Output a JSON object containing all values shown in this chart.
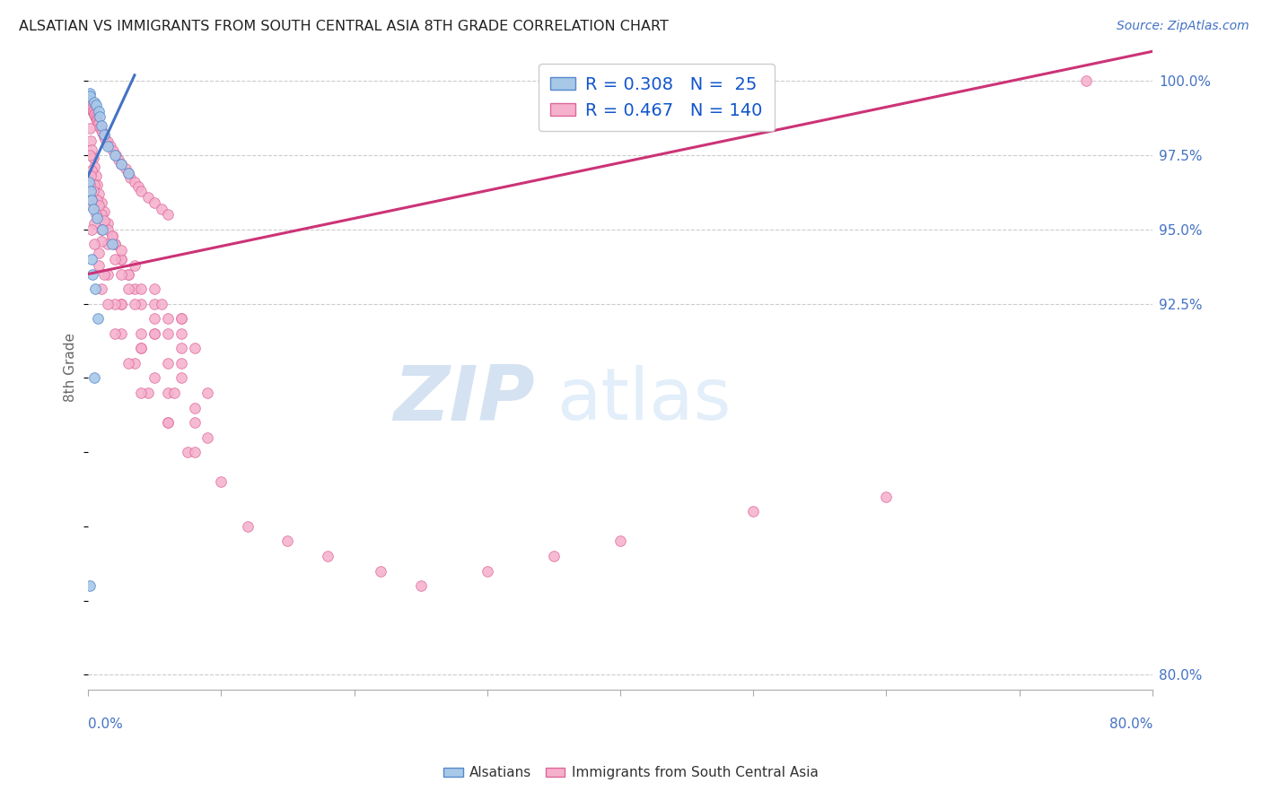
{
  "title": "ALSATIAN VS IMMIGRANTS FROM SOUTH CENTRAL ASIA 8TH GRADE CORRELATION CHART",
  "source": "Source: ZipAtlas.com",
  "ylabel": "8th Grade",
  "xlim": [
    0.0,
    80.0
  ],
  "ylim": [
    79.5,
    101.2
  ],
  "right_yticks": [
    80.0,
    92.5,
    95.0,
    97.5,
    100.0
  ],
  "blue_r": "0.308",
  "blue_n": "25",
  "pink_r": "0.467",
  "pink_n": "140",
  "blue_color": "#a8c8e8",
  "pink_color": "#f5b0cc",
  "blue_edge_color": "#5588cc",
  "pink_edge_color": "#dd6699",
  "blue_line_color": "#4472c4",
  "pink_line_color": "#cc3377",
  "grid_color": "#cccccc",
  "title_color": "#222222",
  "source_color": "#4472c4",
  "axis_label_color": "#666666",
  "right_tick_color": "#4472c4",
  "bottom_label_color": "#4472c4",
  "blue_scatter_x": [
    0.1,
    0.15,
    0.5,
    0.6,
    0.8,
    0.9,
    1.0,
    1.2,
    1.5,
    2.0,
    2.5,
    3.0,
    0.05,
    0.2,
    0.3,
    0.4,
    0.7,
    1.1,
    1.8,
    0.25,
    0.35,
    0.55,
    0.75,
    0.45,
    0.15
  ],
  "blue_scatter_y": [
    99.6,
    99.5,
    99.3,
    99.2,
    99.0,
    98.8,
    98.5,
    98.2,
    97.8,
    97.5,
    97.2,
    96.9,
    96.6,
    96.3,
    96.0,
    95.7,
    95.4,
    95.0,
    94.5,
    94.0,
    93.5,
    93.0,
    92.0,
    90.0,
    83.0
  ],
  "pink_scatter_x": [
    0.05,
    0.08,
    0.1,
    0.12,
    0.15,
    0.18,
    0.2,
    0.25,
    0.3,
    0.35,
    0.4,
    0.45,
    0.5,
    0.55,
    0.6,
    0.65,
    0.7,
    0.75,
    0.8,
    0.9,
    1.0,
    1.1,
    1.2,
    1.3,
    1.5,
    1.7,
    1.9,
    2.1,
    2.3,
    2.5,
    2.8,
    3.0,
    3.2,
    3.5,
    3.8,
    4.0,
    4.5,
    5.0,
    5.5,
    6.0,
    0.1,
    0.2,
    0.3,
    0.4,
    0.5,
    0.6,
    0.7,
    0.8,
    1.0,
    1.2,
    1.5,
    1.8,
    2.0,
    2.5,
    3.0,
    3.5,
    4.0,
    5.0,
    6.0,
    7.0,
    0.15,
    0.3,
    0.5,
    0.7,
    1.0,
    1.5,
    2.0,
    2.5,
    3.0,
    4.0,
    5.0,
    6.0,
    7.0,
    8.0,
    0.2,
    0.4,
    0.8,
    1.2,
    1.8,
    2.5,
    3.5,
    5.0,
    7.0,
    0.1,
    0.3,
    0.6,
    1.0,
    1.5,
    2.5,
    3.5,
    5.0,
    7.0,
    9.0,
    0.2,
    0.5,
    1.0,
    2.0,
    3.0,
    5.0,
    7.0,
    0.3,
    0.8,
    1.5,
    2.5,
    4.0,
    6.0,
    8.0,
    0.5,
    1.2,
    2.5,
    4.0,
    6.0,
    0.8,
    2.0,
    4.0,
    6.5,
    1.0,
    2.5,
    5.0,
    8.0,
    1.5,
    3.5,
    6.0,
    2.0,
    4.5,
    7.5,
    3.0,
    6.0,
    10.0,
    4.0,
    8.0,
    5.5,
    9.0,
    7.0,
    12.0,
    15.0,
    18.0,
    22.0,
    25.0,
    30.0,
    35.0,
    40.0,
    50.0,
    60.0,
    75.0
  ],
  "pink_scatter_y": [
    99.5,
    99.4,
    99.35,
    99.3,
    99.25,
    99.2,
    99.15,
    99.1,
    99.05,
    99.0,
    98.95,
    98.9,
    98.85,
    98.8,
    98.75,
    98.7,
    98.65,
    98.6,
    98.55,
    98.45,
    98.35,
    98.25,
    98.15,
    98.05,
    97.95,
    97.8,
    97.65,
    97.5,
    97.35,
    97.2,
    97.05,
    96.9,
    96.75,
    96.6,
    96.45,
    96.3,
    96.1,
    95.9,
    95.7,
    95.5,
    98.4,
    98.0,
    97.7,
    97.4,
    97.1,
    96.8,
    96.5,
    96.2,
    95.9,
    95.6,
    95.2,
    94.8,
    94.5,
    94.0,
    93.5,
    93.0,
    92.5,
    92.0,
    91.5,
    91.0,
    97.5,
    97.0,
    96.5,
    96.0,
    95.5,
    95.0,
    94.5,
    94.0,
    93.5,
    93.0,
    92.5,
    92.0,
    91.5,
    91.0,
    96.8,
    96.3,
    95.8,
    95.3,
    94.8,
    94.3,
    93.8,
    93.0,
    92.0,
    96.5,
    96.0,
    95.5,
    95.0,
    94.5,
    93.5,
    92.5,
    91.5,
    90.5,
    89.5,
    95.8,
    95.2,
    94.6,
    94.0,
    93.0,
    91.5,
    90.0,
    95.0,
    94.2,
    93.5,
    92.5,
    91.5,
    90.5,
    89.0,
    94.5,
    93.5,
    92.5,
    91.0,
    89.5,
    93.8,
    92.5,
    91.0,
    89.5,
    93.0,
    91.5,
    90.0,
    88.5,
    92.5,
    90.5,
    88.5,
    91.5,
    89.5,
    87.5,
    90.5,
    88.5,
    86.5,
    89.5,
    87.5,
    92.5,
    88.0,
    92.0,
    85.0,
    84.5,
    84.0,
    83.5,
    83.0,
    83.5,
    84.0,
    84.5,
    85.5,
    86.0,
    100.0
  ],
  "blue_trend_x": [
    0.0,
    3.5
  ],
  "blue_trend_y": [
    96.8,
    100.2
  ],
  "pink_trend_x": [
    0.0,
    80.0
  ],
  "pink_trend_y": [
    93.5,
    101.0
  ]
}
